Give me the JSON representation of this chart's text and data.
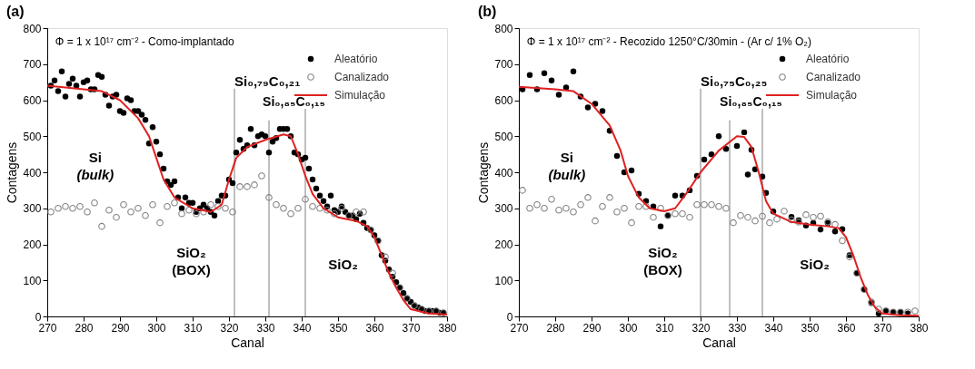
{
  "chart_data": [
    {
      "type": "scatter",
      "title": "(a)",
      "xlabel": "Canal",
      "ylabel": "Contagens",
      "xlim": [
        270,
        380
      ],
      "ylim": [
        0,
        800
      ],
      "xticks": [
        270,
        280,
        290,
        300,
        310,
        320,
        330,
        340,
        350,
        360,
        370,
        380
      ],
      "yticks": [
        0,
        100,
        200,
        300,
        400,
        500,
        600,
        700,
        800
      ],
      "grid": false,
      "legend": "top right",
      "marker": "circle",
      "series": [
        {
          "name": "Aleatório",
          "color": "#000000",
          "x": [
            271,
            272,
            273,
            274,
            275,
            276,
            277,
            278,
            279,
            280,
            281,
            282,
            283,
            284,
            285,
            286,
            287,
            288,
            289,
            290,
            291,
            292,
            293,
            294,
            295,
            296,
            297,
            298,
            299,
            300,
            301,
            302,
            303,
            304,
            305,
            306,
            307,
            308,
            309,
            310,
            311,
            312,
            313,
            314,
            315,
            316,
            317,
            318,
            319,
            320,
            321,
            322,
            323,
            324,
            325,
            326,
            327,
            328,
            329,
            330,
            331,
            332,
            333,
            334,
            335,
            336,
            337,
            338,
            339,
            340,
            341,
            342,
            343,
            344,
            345,
            346,
            347,
            348,
            349,
            350,
            351,
            352,
            353,
            354,
            355,
            356,
            357,
            358,
            359,
            360,
            361,
            362,
            363,
            364,
            365,
            366,
            367,
            368,
            369,
            370,
            371,
            372,
            373,
            374,
            375,
            376,
            377,
            378,
            379
          ],
          "values": [
            640,
            655,
            625,
            680,
            610,
            645,
            660,
            640,
            610,
            650,
            655,
            630,
            630,
            670,
            665,
            615,
            585,
            610,
            615,
            570,
            565,
            605,
            600,
            570,
            570,
            560,
            545,
            480,
            525,
            485,
            450,
            410,
            375,
            365,
            375,
            330,
            300,
            330,
            315,
            315,
            290,
            300,
            310,
            300,
            290,
            280,
            320,
            335,
            335,
            380,
            370,
            455,
            490,
            465,
            475,
            520,
            475,
            500,
            505,
            500,
            455,
            485,
            495,
            520,
            520,
            520,
            500,
            455,
            450,
            435,
            440,
            410,
            380,
            355,
            335,
            320,
            305,
            335,
            295,
            290,
            305,
            290,
            280,
            280,
            270,
            285,
            260,
            245,
            240,
            225,
            210,
            170,
            155,
            130,
            110,
            95,
            80,
            65,
            50,
            40,
            30,
            25,
            20,
            15,
            15,
            15,
            15,
            10,
            10
          ]
        },
        {
          "name": "Canalizado",
          "color": "#808080",
          "x": [
            271,
            273,
            275,
            277,
            279,
            281,
            283,
            285,
            287,
            289,
            291,
            293,
            295,
            297,
            299,
            301,
            303,
            305,
            307,
            309,
            311,
            313,
            315,
            317,
            319,
            321,
            323,
            325,
            327,
            329,
            331,
            333,
            335,
            337,
            339,
            341,
            343,
            345,
            347,
            349,
            351,
            353,
            355,
            357,
            359,
            361,
            363,
            365,
            367,
            369,
            371,
            373,
            375,
            377,
            379
          ],
          "values": [
            290,
            300,
            305,
            300,
            305,
            290,
            315,
            250,
            295,
            275,
            310,
            290,
            300,
            280,
            310,
            260,
            305,
            315,
            285,
            295,
            285,
            290,
            310,
            305,
            300,
            290,
            360,
            360,
            365,
            390,
            330,
            310,
            300,
            285,
            300,
            325,
            305,
            300,
            295,
            285,
            300,
            280,
            290,
            290,
            240,
            210,
            165,
            120,
            80,
            50,
            30,
            20,
            15,
            15,
            10
          ]
        },
        {
          "name": "Simulação",
          "type": "line",
          "marker": "none",
          "line_style": "solid",
          "color": "#e02020",
          "x": [
            270,
            280,
            285,
            290,
            295,
            298,
            300,
            302,
            305,
            310,
            315,
            318,
            320,
            322,
            325,
            330,
            335,
            337,
            339,
            341,
            343,
            346,
            350,
            355,
            358,
            360,
            362,
            364,
            366,
            368,
            370,
            375,
            380
          ],
          "values": [
            640,
            630,
            625,
            600,
            550,
            500,
            440,
            380,
            330,
            300,
            290,
            310,
            380,
            440,
            470,
            490,
            505,
            500,
            450,
            390,
            340,
            300,
            275,
            265,
            250,
            220,
            170,
            120,
            80,
            45,
            20,
            8,
            5
          ]
        }
      ],
      "ref_lines": [
        {
          "axis": "x",
          "value": 321.5,
          "label": "Si₀,₇₉C₀,₂₁",
          "color": "#808080"
        },
        {
          "axis": "x",
          "value": 331,
          "color": "#808080"
        },
        {
          "axis": "x",
          "value": 341,
          "label": "Si₀,₈₅C₀,₁₅",
          "color": "#808080"
        }
      ],
      "annotations": [
        "Φ = 1 x 10¹⁷ cm⁻² - Como-implantado",
        "Si",
        "(bulk)",
        "SiO₂",
        "(BOX)",
        "SiO₂"
      ]
    },
    {
      "type": "scatter",
      "title": "(b)",
      "xlabel": "Canal",
      "ylabel": "Contagens",
      "xlim": [
        270,
        380
      ],
      "ylim": [
        0,
        800
      ],
      "xticks": [
        270,
        280,
        290,
        300,
        310,
        320,
        330,
        340,
        350,
        360,
        370,
        380
      ],
      "yticks": [
        0,
        100,
        200,
        300,
        400,
        500,
        600,
        700,
        800
      ],
      "grid": false,
      "legend": "top right",
      "marker": "circle",
      "series": [
        {
          "name": "Aleatório",
          "color": "#000000",
          "x": [
            271,
            273,
            275,
            277,
            279,
            281,
            283,
            285,
            287,
            289,
            291,
            293,
            295,
            297,
            299,
            301,
            303,
            305,
            307,
            309,
            311,
            313,
            315,
            317,
            319,
            321,
            323,
            325,
            327,
            330,
            332,
            333,
            334,
            335,
            337,
            338,
            340,
            345,
            347,
            349,
            351,
            353,
            355,
            357,
            359,
            361,
            363,
            365,
            367,
            369,
            371,
            373,
            375,
            377
          ],
          "values": [
            630,
            670,
            630,
            675,
            655,
            615,
            635,
            680,
            610,
            580,
            590,
            570,
            515,
            445,
            400,
            405,
            340,
            320,
            305,
            250,
            280,
            335,
            335,
            350,
            390,
            435,
            450,
            500,
            465,
            473,
            511,
            394,
            462,
            408,
            388,
            343,
            291,
            276,
            267,
            252,
            259,
            241,
            259,
            236,
            242,
            170,
            120,
            75,
            37,
            8,
            16,
            12,
            12,
            8
          ]
        },
        {
          "name": "Canalizado",
          "color": "#808080",
          "x": [
            271,
            273,
            275,
            277,
            279,
            281,
            283,
            285,
            287,
            289,
            291,
            293,
            295,
            297,
            299,
            301,
            303,
            305,
            307,
            309,
            311,
            313,
            315,
            317,
            319,
            321,
            323,
            325,
            327,
            329,
            331,
            333,
            335,
            337,
            339,
            341,
            343,
            345,
            347,
            349,
            351,
            353,
            355,
            357,
            359,
            361,
            363,
            365,
            367,
            369,
            371,
            373,
            375,
            377,
            379
          ],
          "values": [
            350,
            300,
            310,
            300,
            325,
            295,
            300,
            290,
            310,
            330,
            265,
            305,
            330,
            290,
            300,
            260,
            305,
            305,
            275,
            300,
            280,
            285,
            285,
            275,
            310,
            310,
            310,
            305,
            300,
            260,
            280,
            275,
            265,
            278,
            260,
            270,
            292,
            268,
            262,
            282,
            275,
            278,
            262,
            255,
            210,
            165,
            120,
            75,
            40,
            20,
            15,
            12,
            12,
            12,
            15
          ]
        },
        {
          "name": "Simulação",
          "type": "line",
          "marker": "none",
          "line_style": "solid",
          "color": "#e02020",
          "x": [
            270,
            280,
            285,
            290,
            295,
            298,
            300,
            303,
            306,
            310,
            313,
            316,
            320,
            325,
            330,
            332,
            334,
            336,
            338,
            340,
            345,
            350,
            355,
            358,
            360,
            362,
            364,
            366,
            368,
            370,
            375,
            380
          ],
          "values": [
            637,
            630,
            625,
            590,
            530,
            460,
            390,
            330,
            300,
            292,
            300,
            340,
            400,
            460,
            500,
            498,
            470,
            400,
            320,
            285,
            262,
            255,
            250,
            245,
            220,
            170,
            110,
            60,
            25,
            8,
            3,
            2
          ]
        }
      ],
      "ref_lines": [
        {
          "axis": "x",
          "value": 320,
          "label": "Si₀,₇₅C₀,₂₅",
          "color": "#808080"
        },
        {
          "axis": "x",
          "value": 328,
          "color": "#808080"
        },
        {
          "axis": "x",
          "value": 337,
          "label": "Si₀,₈₅C₀,₁₅",
          "color": "#808080"
        }
      ],
      "annotations": [
        "Φ = 1 x 10¹⁷ cm⁻² - Recozido 1250°C/30min - (Ar c/ 1% O₂)",
        "Si",
        "(bulk)",
        "SiO₂",
        "(BOX)",
        "SiO₂"
      ]
    }
  ]
}
